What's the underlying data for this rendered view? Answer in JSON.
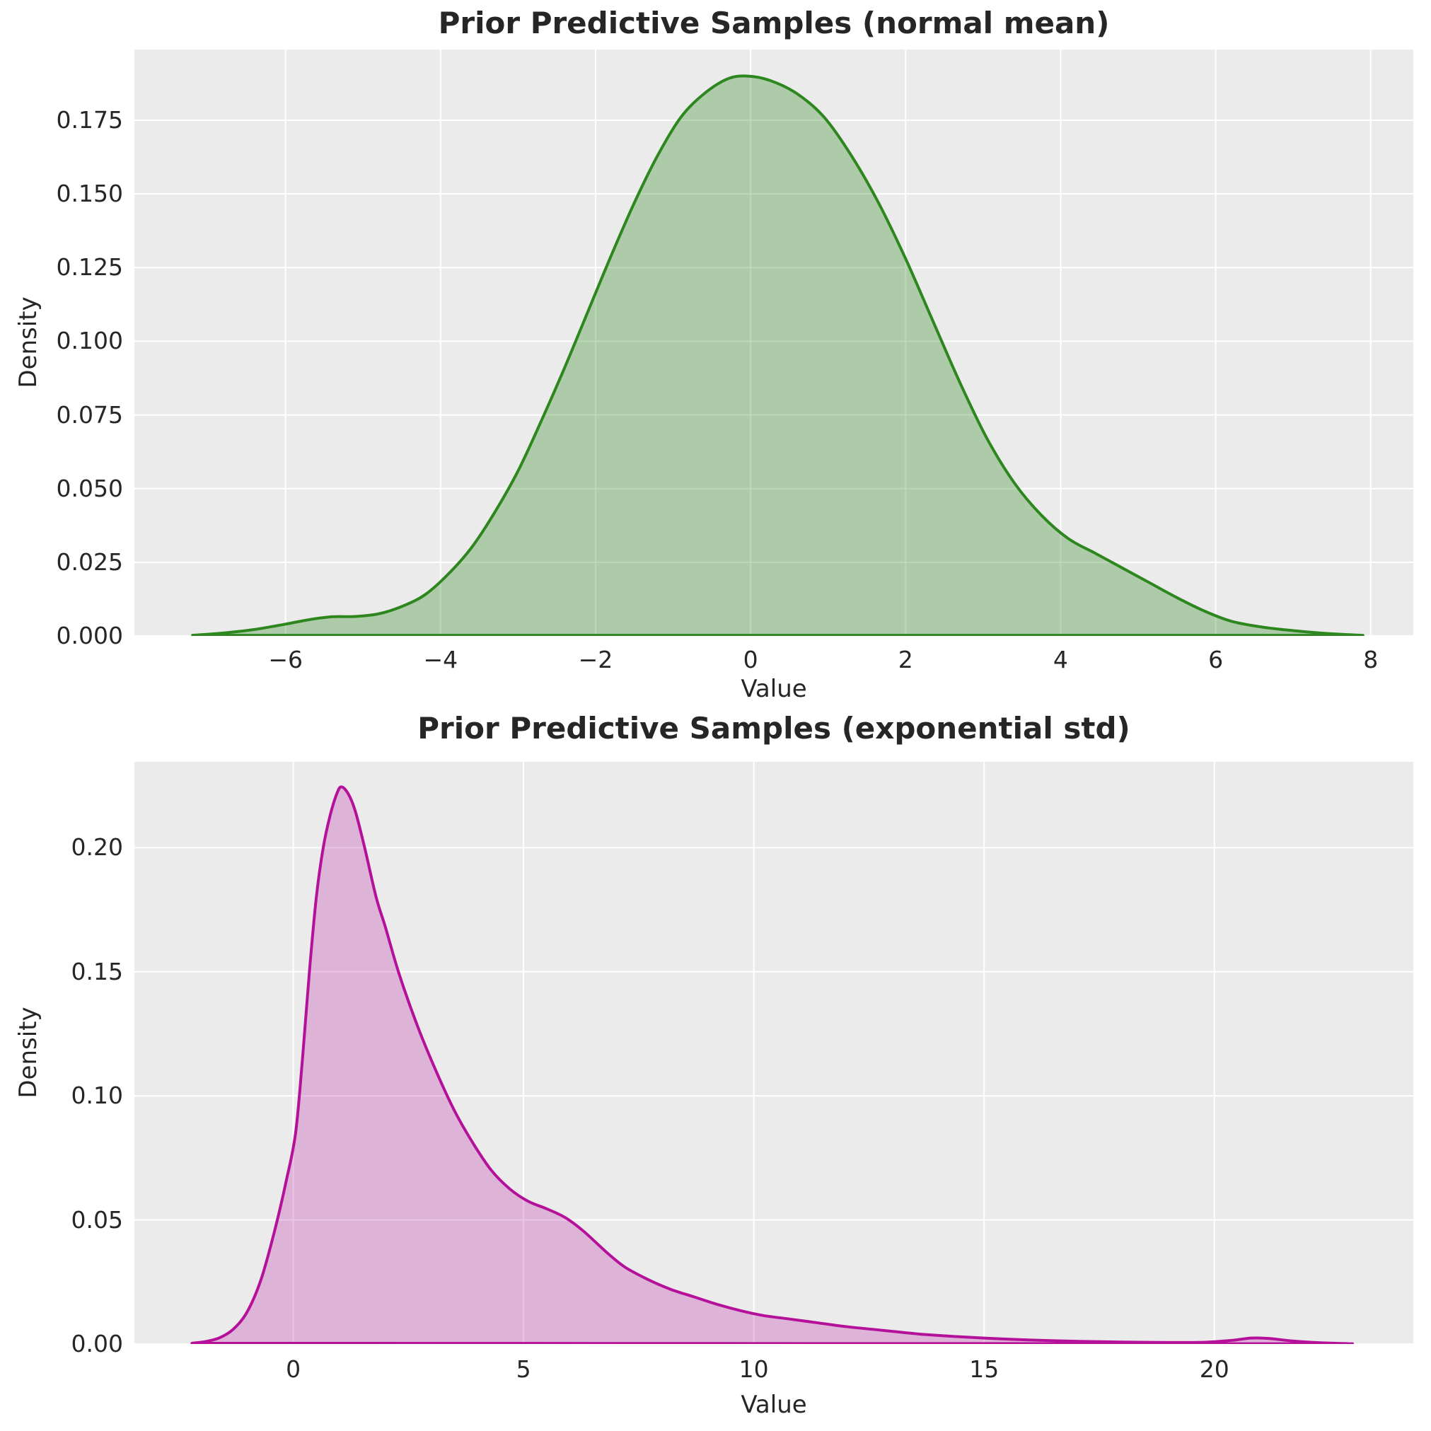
{
  "figure": {
    "background": "#ffffff",
    "plot_background": "#ebebeb",
    "grid_color": "#ffffff",
    "text_color": "#262626"
  },
  "chart_data": [
    {
      "type": "area",
      "title": "Prior Predictive Samples (normal mean)",
      "xlabel": "Value",
      "ylabel": "Density",
      "legend": "none",
      "grid": true,
      "xlim": [
        -7.95,
        8.55
      ],
      "ylim": [
        0,
        0.199
      ],
      "x_ticks": [
        {
          "v": -6,
          "label": "−6"
        },
        {
          "v": -4,
          "label": "−4"
        },
        {
          "v": -2,
          "label": "−2"
        },
        {
          "v": 0,
          "label": "0"
        },
        {
          "v": 2,
          "label": "2"
        },
        {
          "v": 4,
          "label": "4"
        },
        {
          "v": 6,
          "label": "6"
        },
        {
          "v": 8,
          "label": "8"
        }
      ],
      "y_ticks": [
        {
          "v": 0.0,
          "label": "0.000"
        },
        {
          "v": 0.025,
          "label": "0.025"
        },
        {
          "v": 0.05,
          "label": "0.050"
        },
        {
          "v": 0.075,
          "label": "0.075"
        },
        {
          "v": 0.1,
          "label": "0.100"
        },
        {
          "v": 0.125,
          "label": "0.125"
        },
        {
          "v": 0.15,
          "label": "0.150"
        },
        {
          "v": 0.175,
          "label": "0.175"
        }
      ],
      "line_color": "#2d871e",
      "fill_color": "rgba(45, 135, 30, 0.32)",
      "peak": {
        "x": -0.05,
        "density": 0.19
      },
      "points": [
        [
          -7.2,
          0.0002
        ],
        [
          -6.8,
          0.001
        ],
        [
          -6.4,
          0.0022
        ],
        [
          -6.0,
          0.004
        ],
        [
          -5.7,
          0.0055
        ],
        [
          -5.4,
          0.0065
        ],
        [
          -5.1,
          0.0066
        ],
        [
          -4.8,
          0.0075
        ],
        [
          -4.5,
          0.01
        ],
        [
          -4.2,
          0.014
        ],
        [
          -3.9,
          0.021
        ],
        [
          -3.6,
          0.03
        ],
        [
          -3.3,
          0.042
        ],
        [
          -3.0,
          0.056
        ],
        [
          -2.7,
          0.073
        ],
        [
          -2.4,
          0.091
        ],
        [
          -2.1,
          0.11
        ],
        [
          -1.8,
          0.129
        ],
        [
          -1.5,
          0.147
        ],
        [
          -1.2,
          0.163
        ],
        [
          -0.9,
          0.176
        ],
        [
          -0.6,
          0.184
        ],
        [
          -0.3,
          0.189
        ],
        [
          -0.05,
          0.19
        ],
        [
          0.25,
          0.1885
        ],
        [
          0.6,
          0.184
        ],
        [
          0.95,
          0.176
        ],
        [
          1.3,
          0.163
        ],
        [
          1.65,
          0.147
        ],
        [
          2.0,
          0.128
        ],
        [
          2.35,
          0.107
        ],
        [
          2.7,
          0.086
        ],
        [
          3.05,
          0.067
        ],
        [
          3.4,
          0.052
        ],
        [
          3.75,
          0.041
        ],
        [
          4.1,
          0.033
        ],
        [
          4.45,
          0.028
        ],
        [
          4.8,
          0.023
        ],
        [
          5.15,
          0.018
        ],
        [
          5.5,
          0.013
        ],
        [
          5.85,
          0.0085
        ],
        [
          6.2,
          0.005
        ],
        [
          6.6,
          0.003
        ],
        [
          7.0,
          0.0018
        ],
        [
          7.45,
          0.0008
        ],
        [
          7.9,
          0.0002
        ]
      ]
    },
    {
      "type": "area",
      "title": "Prior Predictive Samples (exponential std)",
      "xlabel": "Value",
      "ylabel": "Density",
      "legend": "none",
      "grid": true,
      "xlim": [
        -3.45,
        24.32
      ],
      "ylim": [
        0,
        0.2346
      ],
      "x_ticks": [
        {
          "v": 0,
          "label": "0"
        },
        {
          "v": 5,
          "label": "5"
        },
        {
          "v": 10,
          "label": "10"
        },
        {
          "v": 15,
          "label": "15"
        },
        {
          "v": 20,
          "label": "20"
        }
      ],
      "y_ticks": [
        {
          "v": 0.0,
          "label": "0.00"
        },
        {
          "v": 0.05,
          "label": "0.05"
        },
        {
          "v": 0.1,
          "label": "0.10"
        },
        {
          "v": 0.15,
          "label": "0.15"
        },
        {
          "v": 0.2,
          "label": "0.20"
        }
      ],
      "line_color": "#b5109a",
      "fill_color": "rgba(181, 16, 154, 0.25)",
      "peak": {
        "x": 1.0,
        "density": 0.2245
      },
      "points": [
        [
          -2.2,
          0.0003
        ],
        [
          -1.9,
          0.001
        ],
        [
          -1.6,
          0.0025
        ],
        [
          -1.3,
          0.006
        ],
        [
          -1.0,
          0.013
        ],
        [
          -0.7,
          0.026
        ],
        [
          -0.4,
          0.046
        ],
        [
          -0.15,
          0.066
        ],
        [
          0.05,
          0.085
        ],
        [
          0.2,
          0.115
        ],
        [
          0.35,
          0.15
        ],
        [
          0.5,
          0.18
        ],
        [
          0.65,
          0.2
        ],
        [
          0.8,
          0.213
        ],
        [
          0.95,
          0.222
        ],
        [
          1.05,
          0.2245
        ],
        [
          1.2,
          0.2215
        ],
        [
          1.35,
          0.2145
        ],
        [
          1.55,
          0.2
        ],
        [
          1.8,
          0.18
        ],
        [
          2.0,
          0.168
        ],
        [
          2.3,
          0.149
        ],
        [
          2.7,
          0.128
        ],
        [
          3.1,
          0.11
        ],
        [
          3.5,
          0.094
        ],
        [
          3.9,
          0.081
        ],
        [
          4.3,
          0.07
        ],
        [
          4.7,
          0.0625
        ],
        [
          5.1,
          0.0575
        ],
        [
          5.5,
          0.0545
        ],
        [
          5.9,
          0.051
        ],
        [
          6.3,
          0.0455
        ],
        [
          6.8,
          0.037
        ],
        [
          7.2,
          0.031
        ],
        [
          7.7,
          0.026
        ],
        [
          8.2,
          0.022
        ],
        [
          8.7,
          0.019
        ],
        [
          9.2,
          0.016
        ],
        [
          9.7,
          0.0135
        ],
        [
          10.2,
          0.0115
        ],
        [
          10.8,
          0.01
        ],
        [
          11.4,
          0.0085
        ],
        [
          12.0,
          0.007
        ],
        [
          12.8,
          0.0055
        ],
        [
          13.6,
          0.004
        ],
        [
          14.4,
          0.003
        ],
        [
          15.2,
          0.0022
        ],
        [
          16.0,
          0.0016
        ],
        [
          17.0,
          0.0011
        ],
        [
          18.0,
          0.0008
        ],
        [
          19.0,
          0.0006
        ],
        [
          19.8,
          0.0007
        ],
        [
          20.4,
          0.0015
        ],
        [
          20.8,
          0.0024
        ],
        [
          21.2,
          0.0022
        ],
        [
          21.7,
          0.0012
        ],
        [
          22.3,
          0.0005
        ],
        [
          23.0,
          0.0001
        ]
      ]
    }
  ]
}
